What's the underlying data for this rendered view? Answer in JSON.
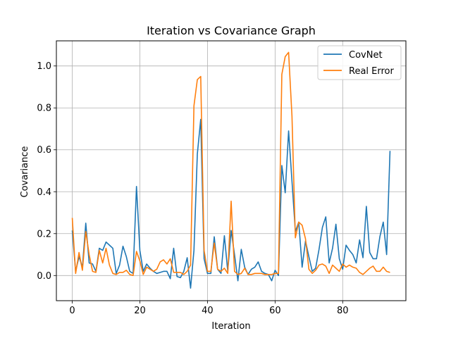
{
  "chart_data": {
    "type": "line",
    "title": "Iteration vs Covariance Graph",
    "xlabel": "Iteration",
    "ylabel": "Covariance",
    "xlim": [
      -4.7,
      98.7
    ],
    "ylim": [
      -0.12,
      1.12
    ],
    "xticks": [
      0,
      20,
      40,
      60,
      80
    ],
    "yticks": [
      0.0,
      0.2,
      0.4,
      0.6,
      0.8,
      1.0
    ],
    "grid": true,
    "legend_position": "top-right",
    "series": [
      {
        "name": "CovNet",
        "color": "#1f77b4",
        "x": [
          0,
          1,
          2,
          3,
          4,
          5,
          6,
          7,
          8,
          9,
          10,
          11,
          12,
          13,
          14,
          15,
          16,
          17,
          18,
          19,
          20,
          21,
          22,
          23,
          24,
          25,
          26,
          27,
          28,
          29,
          30,
          31,
          32,
          33,
          34,
          35,
          36,
          37,
          38,
          39,
          40,
          41,
          42,
          43,
          44,
          45,
          46,
          47,
          48,
          49,
          50,
          51,
          52,
          53,
          54,
          55,
          56,
          57,
          58,
          59,
          60,
          61,
          62,
          63,
          64,
          65,
          66,
          67,
          68,
          69,
          70,
          71,
          72,
          73,
          74,
          75,
          76,
          77,
          78,
          79,
          80,
          81,
          82,
          83,
          84,
          85,
          86,
          87,
          88,
          89,
          90,
          91,
          92,
          93,
          94
        ],
        "values": [
          0.215,
          0.02,
          0.09,
          0.04,
          0.25,
          0.06,
          0.055,
          0.02,
          0.13,
          0.12,
          0.16,
          0.145,
          0.13,
          0.01,
          0.05,
          0.14,
          0.09,
          0.02,
          0.01,
          0.425,
          0.12,
          0.02,
          0.055,
          0.035,
          0.02,
          0.01,
          0.015,
          0.02,
          0.02,
          -0.015,
          0.13,
          -0.005,
          -0.01,
          0.02,
          0.085,
          -0.06,
          0.12,
          0.58,
          0.745,
          0.08,
          0.01,
          0.01,
          0.185,
          0.03,
          0.01,
          0.19,
          0.02,
          0.215,
          0.1,
          -0.025,
          0.125,
          0.04,
          0.005,
          0.03,
          0.04,
          0.065,
          0.02,
          0.01,
          0.005,
          -0.025,
          0.025,
          0.0,
          0.525,
          0.395,
          0.69,
          0.45,
          0.21,
          0.255,
          0.04,
          0.165,
          0.09,
          0.02,
          0.035,
          0.125,
          0.23,
          0.28,
          0.06,
          0.13,
          0.245,
          0.08,
          0.03,
          0.145,
          0.12,
          0.1,
          0.06,
          0.17,
          0.085,
          0.33,
          0.11,
          0.08,
          0.08,
          0.185,
          0.255,
          0.1,
          0.595
        ]
      },
      {
        "name": "Real Error",
        "color": "#ff7f0e",
        "x": [
          0,
          1,
          2,
          3,
          4,
          5,
          6,
          7,
          8,
          9,
          10,
          11,
          12,
          13,
          14,
          15,
          16,
          17,
          18,
          19,
          20,
          21,
          22,
          23,
          24,
          25,
          26,
          27,
          28,
          29,
          30,
          31,
          32,
          33,
          34,
          35,
          36,
          37,
          38,
          39,
          40,
          41,
          42,
          43,
          44,
          45,
          46,
          47,
          48,
          49,
          50,
          51,
          52,
          53,
          54,
          55,
          56,
          57,
          58,
          59,
          60,
          61,
          62,
          63,
          64,
          65,
          66,
          67,
          68,
          69,
          70,
          71,
          72,
          73,
          74,
          75,
          76,
          77,
          78,
          79,
          80,
          81,
          82,
          83,
          84,
          85,
          86,
          87,
          88,
          89,
          90,
          91,
          92,
          93,
          94
        ],
        "values": [
          0.275,
          0.01,
          0.11,
          0.025,
          0.21,
          0.1,
          0.02,
          0.015,
          0.12,
          0.06,
          0.13,
          0.05,
          0.01,
          0.005,
          0.015,
          0.015,
          0.025,
          0.005,
          0.0,
          0.115,
          0.07,
          0.005,
          0.04,
          0.03,
          0.02,
          0.03,
          0.065,
          0.075,
          0.055,
          0.08,
          0.015,
          0.015,
          0.015,
          0.005,
          0.02,
          0.05,
          0.81,
          0.935,
          0.95,
          0.12,
          0.02,
          0.02,
          0.155,
          0.03,
          0.02,
          0.035,
          0.01,
          0.355,
          0.02,
          0.005,
          0.01,
          0.035,
          0.005,
          0.005,
          0.01,
          0.01,
          0.01,
          0.005,
          0.005,
          0.005,
          0.01,
          0.01,
          0.96,
          1.045,
          1.065,
          0.76,
          0.18,
          0.255,
          0.24,
          0.175,
          0.03,
          0.01,
          0.025,
          0.05,
          0.055,
          0.045,
          0.01,
          0.05,
          0.035,
          0.02,
          0.055,
          0.04,
          0.05,
          0.04,
          0.035,
          0.015,
          0.005,
          0.02,
          0.035,
          0.045,
          0.02,
          0.02,
          0.04,
          0.02,
          0.015
        ]
      }
    ]
  }
}
